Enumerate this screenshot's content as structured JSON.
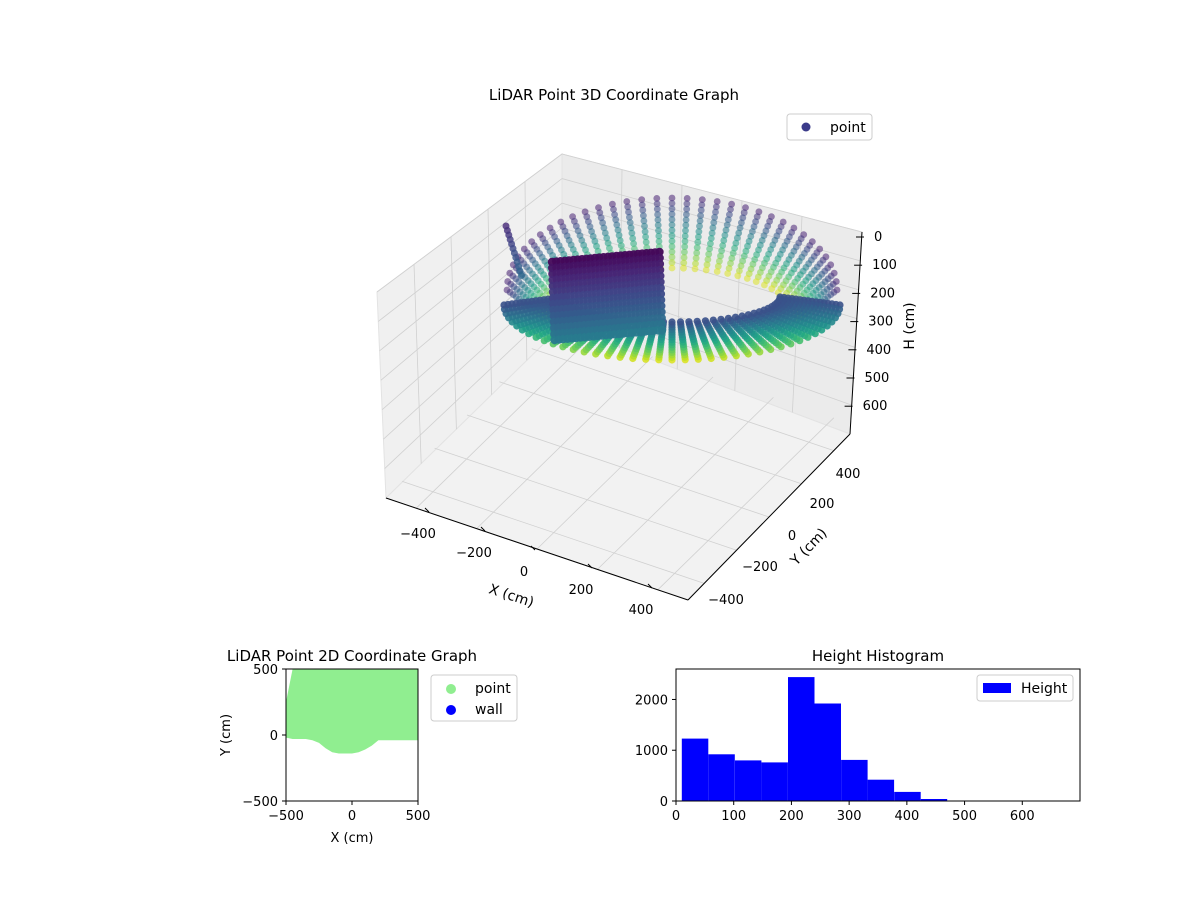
{
  "chart_data": [
    {
      "type": "scatter",
      "title": "LiDAR Point 3D Coordinate Graph",
      "xlabel": "X (cm)",
      "ylabel": "Y (cm)",
      "zlabel": "H (cm)",
      "xlim": [
        -500,
        500
      ],
      "ylim": [
        -500,
        500
      ],
      "zlim": [
        0,
        700
      ],
      "z_inverted": true,
      "x_ticks": [
        "−400",
        "−200",
        "0",
        "200",
        "400"
      ],
      "y_ticks": [
        "−400",
        "−200",
        "0",
        "200",
        "400"
      ],
      "z_ticks": [
        "0",
        "100",
        "200",
        "300",
        "400",
        "500",
        "600"
      ],
      "legend": [
        {
          "label": "point",
          "color": "#3b3b8a"
        }
      ],
      "legend_position": "upper right",
      "colormap": "viridis",
      "grid": true
    },
    {
      "type": "scatter",
      "title": "LiDAR Point 2D Coordinate Graph",
      "xlabel": "X (cm)",
      "ylabel": "Y (cm)",
      "xlim": [
        -500,
        500
      ],
      "ylim": [
        -500,
        500
      ],
      "x_ticks": [
        "−500",
        "0",
        "500"
      ],
      "y_ticks": [
        "500",
        "0",
        "−500"
      ],
      "series": [
        {
          "name": "point",
          "color": "#90ee90",
          "boundary": [
            [
              -500,
              250
            ],
            [
              -450,
              500
            ],
            [
              500,
              500
            ],
            [
              500,
              -40
            ],
            [
              350,
              -40
            ],
            [
              200,
              -40
            ],
            [
              150,
              -80
            ],
            [
              100,
              -110
            ],
            [
              50,
              -130
            ],
            [
              0,
              -140
            ],
            [
              -50,
              -140
            ],
            [
              -100,
              -140
            ],
            [
              -150,
              -130
            ],
            [
              -200,
              -100
            ],
            [
              -250,
              -60
            ],
            [
              -300,
              -40
            ],
            [
              -350,
              -30
            ],
            [
              -450,
              -30
            ],
            [
              -500,
              -20
            ]
          ]
        },
        {
          "name": "wall",
          "color": "#0000ff",
          "points": []
        }
      ],
      "legend_position": "outside right",
      "grid": false
    },
    {
      "type": "bar",
      "title": "Height Histogram",
      "xlim": [
        0,
        700
      ],
      "ylim": [
        0,
        2600
      ],
      "x_ticks": [
        0,
        100,
        200,
        300,
        400,
        500,
        600
      ],
      "y_ticks": [
        0,
        1000,
        2000
      ],
      "bin_edges": [
        10,
        56,
        102,
        148,
        194,
        240,
        286,
        332,
        378,
        424,
        470,
        516,
        562,
        608,
        654,
        700
      ],
      "values": [
        1230,
        920,
        800,
        760,
        2440,
        1920,
        810,
        420,
        180,
        40,
        10,
        6,
        4,
        2,
        2
      ],
      "series": [
        {
          "name": "Height",
          "color": "#0000ff"
        }
      ],
      "legend_position": "upper right",
      "grid": false
    }
  ]
}
